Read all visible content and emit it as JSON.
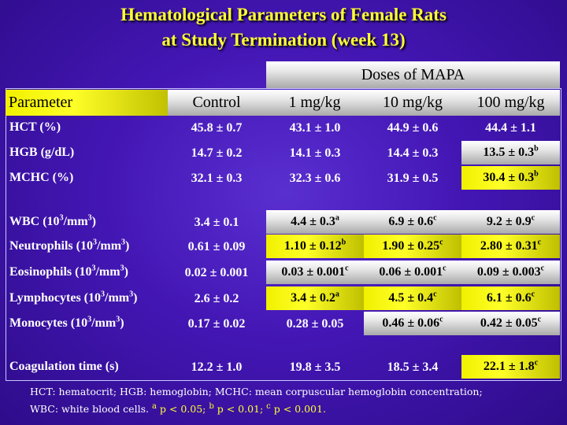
{
  "title": {
    "line1": "Hematological Parameters of Female Rats",
    "line2": "at Study Termination (week 13)"
  },
  "doses_label": "Doses of MAPA",
  "header": {
    "parameter": "Parameter",
    "columns": [
      "Control",
      "1 mg/kg",
      "10 mg/kg",
      "100 mg/kg"
    ]
  },
  "rows": [
    {
      "label": "HCT (%)",
      "values": [
        "45.8 ± 0.7",
        "43.1 ± 1.0",
        "44.9 ± 0.6",
        "44.4 ± 1.1"
      ],
      "sup": [
        "",
        "",
        "",
        ""
      ],
      "hl": [
        "",
        "",
        "",
        ""
      ]
    },
    {
      "label": "HGB (g/dL)",
      "values": [
        "14.7 ± 0.2",
        "14.1 ± 0.3",
        "14.4 ± 0.3",
        "13.5 ± 0.3"
      ],
      "sup": [
        "",
        "",
        "",
        "b"
      ],
      "hl": [
        "",
        "",
        "",
        "silver"
      ]
    },
    {
      "label": "MCHC (%)",
      "values": [
        "32.1 ± 0.3",
        "32.3 ± 0.6",
        "31.9 ± 0.5",
        "30.4 ± 0.3"
      ],
      "sup": [
        "",
        "",
        "",
        "b"
      ],
      "hl": [
        "",
        "",
        "",
        "yellow"
      ]
    },
    {
      "label": "WBC (10",
      "label_sup": "3",
      "label_end": "/mm",
      "label_sup2": "3",
      "label_close": ")",
      "values": [
        "3.4 ± 0.1",
        "4.4 ± 0.3",
        "6.9 ± 0.6",
        "9.2 ± 0.9"
      ],
      "sup": [
        "",
        "a",
        "c",
        "c"
      ],
      "hl": [
        "",
        "silver",
        "silver",
        "silver"
      ]
    },
    {
      "label": "Neutrophils (10",
      "label_sup": "3",
      "label_end": "/mm",
      "label_sup2": "3",
      "label_close": ")",
      "values": [
        "0.61 ± 0.09",
        "1.10 ± 0.12",
        "1.90 ± 0.25",
        "2.80 ± 0.31"
      ],
      "sup": [
        "",
        "b",
        "c",
        "c"
      ],
      "hl": [
        "",
        "yellow",
        "yellow",
        "yellow"
      ]
    },
    {
      "label": "Eosinophils (10",
      "label_sup": "3",
      "label_end": "/mm",
      "label_sup2": "3",
      "label_close": ")",
      "values": [
        "0.02 ± 0.001",
        "0.03 ± 0.001",
        "0.06 ± 0.001",
        "0.09 ± 0.003"
      ],
      "sup": [
        "",
        "c",
        "c",
        "c"
      ],
      "hl": [
        "",
        "silver",
        "silver",
        "silver"
      ]
    },
    {
      "label": "Lymphocytes (10",
      "label_sup": "3",
      "label_end": "/mm",
      "label_sup2": "3",
      "label_close": ")",
      "values": [
        "2.6 ± 0.2",
        "3.4 ± 0.2",
        "4.5 ± 0.4",
        "6.1 ± 0.6"
      ],
      "sup": [
        "",
        "a",
        "c",
        "c"
      ],
      "hl": [
        "",
        "yellow",
        "yellow",
        "yellow"
      ]
    },
    {
      "label": "Monocytes (10",
      "label_sup": "3",
      "label_end": "/mm",
      "label_sup2": "3",
      "label_close": ")",
      "values": [
        "0.17 ± 0.02",
        "0.28 ± 0.05",
        "0.46 ± 0.06",
        "0.42 ± 0.05"
      ],
      "sup": [
        "",
        "",
        "c",
        "c"
      ],
      "hl": [
        "",
        "",
        "silver",
        "silver"
      ]
    },
    {
      "label": "Coagulation time (s)",
      "values": [
        "12.2 ± 1.0",
        "19.8 ± 3.5",
        "18.5 ± 3.4",
        "22.1 ± 1.8"
      ],
      "sup": [
        "",
        "",
        "",
        "c"
      ],
      "hl": [
        "",
        "",
        "",
        "yellow"
      ]
    }
  ],
  "footnote": {
    "line1": "HCT: hematocrit; HGB: hemoglobin; MCHC: mean corpuscular hemoglobin concentration;",
    "line2_text": "WBC: white blood cells.",
    "sig_a_mark": "a",
    "sig_a": " p < 0.05; ",
    "sig_b_mark": "b",
    "sig_b": " p < 0.01; ",
    "sig_c_mark": "c",
    "sig_c": " p < 0.001."
  }
}
